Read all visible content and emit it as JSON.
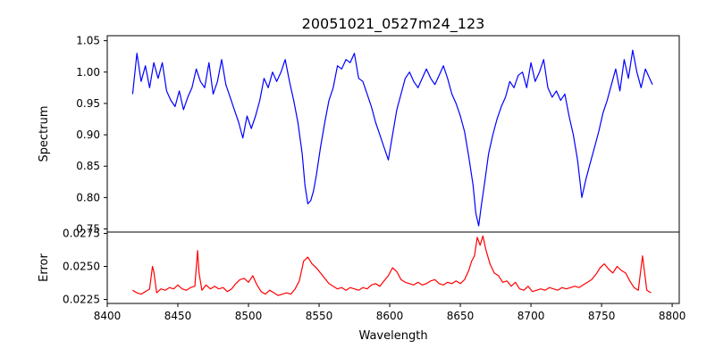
{
  "chart_data": [
    {
      "type": "line",
      "title": "20051021_0527m24_123",
      "xlabel": "",
      "ylabel": "Spectrum",
      "xlim": [
        8400,
        8805
      ],
      "ylim": [
        0.745,
        1.058
      ],
      "yticks": [
        0.75,
        0.8,
        0.85,
        0.9,
        0.95,
        1.0,
        1.05
      ],
      "ytick_labels": [
        "0.75",
        "0.80",
        "0.85",
        "0.90",
        "0.95",
        "1.00",
        "1.05"
      ],
      "grid": false,
      "series": [
        {
          "color": "#0000ff",
          "x": [
            8418,
            8421,
            8424,
            8427,
            8430,
            8433,
            8436,
            8439,
            8442,
            8445,
            8448,
            8451,
            8454,
            8457,
            8460,
            8463,
            8466,
            8469,
            8472,
            8475,
            8478,
            8481,
            8484,
            8487,
            8490,
            8493,
            8496,
            8499,
            8502,
            8505,
            8508,
            8511,
            8514,
            8517,
            8520,
            8523,
            8526,
            8529,
            8532,
            8535,
            8538,
            8540,
            8542,
            8544,
            8546,
            8548,
            8551,
            8554,
            8557,
            8560,
            8563,
            8566,
            8569,
            8572,
            8575,
            8578,
            8581,
            8584,
            8587,
            8590,
            8593,
            8596,
            8599,
            8602,
            8605,
            8608,
            8611,
            8614,
            8617,
            8620,
            8623,
            8626,
            8629,
            8632,
            8635,
            8638,
            8641,
            8644,
            8647,
            8650,
            8653,
            8656,
            8659,
            8661,
            8663,
            8665,
            8667,
            8670,
            8673,
            8676,
            8679,
            8682,
            8685,
            8688,
            8691,
            8694,
            8697,
            8700,
            8703,
            8706,
            8709,
            8712,
            8715,
            8718,
            8721,
            8724,
            8727,
            8730,
            8733,
            8736,
            8739,
            8742,
            8745,
            8748,
            8751,
            8754,
            8757,
            8760,
            8763,
            8766,
            8769,
            8772,
            8775,
            8778,
            8781,
            8784,
            8786
          ],
          "y": [
            0.965,
            1.03,
            0.985,
            1.01,
            0.975,
            1.015,
            0.99,
            1.015,
            0.97,
            0.955,
            0.945,
            0.97,
            0.94,
            0.96,
            0.975,
            1.005,
            0.985,
            0.975,
            1.015,
            0.965,
            0.985,
            1.02,
            0.98,
            0.96,
            0.94,
            0.92,
            0.895,
            0.93,
            0.91,
            0.93,
            0.955,
            0.99,
            0.975,
            1.0,
            0.985,
            1.0,
            1.02,
            0.985,
            0.955,
            0.92,
            0.87,
            0.82,
            0.79,
            0.795,
            0.81,
            0.835,
            0.88,
            0.92,
            0.955,
            0.975,
            1.01,
            1.005,
            1.02,
            1.015,
            1.03,
            0.99,
            0.985,
            0.965,
            0.945,
            0.92,
            0.9,
            0.88,
            0.86,
            0.9,
            0.94,
            0.965,
            0.99,
            1.0,
            0.985,
            0.975,
            0.99,
            1.005,
            0.99,
            0.98,
            0.995,
            1.01,
            0.99,
            0.965,
            0.95,
            0.93,
            0.905,
            0.865,
            0.82,
            0.775,
            0.755,
            0.79,
            0.82,
            0.87,
            0.9,
            0.925,
            0.945,
            0.96,
            0.985,
            0.975,
            0.995,
            1.0,
            0.975,
            1.015,
            0.985,
            1.0,
            1.02,
            0.975,
            0.96,
            0.97,
            0.955,
            0.965,
            0.93,
            0.9,
            0.86,
            0.8,
            0.83,
            0.855,
            0.88,
            0.905,
            0.935,
            0.955,
            0.98,
            1.005,
            0.97,
            1.02,
            0.99,
            1.035,
            1.0,
            0.975,
            1.005,
            0.99,
            0.98
          ]
        }
      ]
    },
    {
      "type": "line",
      "title": "",
      "xlabel": "Wavelength",
      "ylabel": "Error",
      "xlim": [
        8400,
        8805
      ],
      "ylim": [
        0.0222,
        0.0276
      ],
      "yticks": [
        0.0225,
        0.025,
        0.0275
      ],
      "ytick_labels": [
        "0.0225",
        "0.0250",
        "0.0275"
      ],
      "xticks": [
        8400,
        8450,
        8500,
        8550,
        8600,
        8650,
        8700,
        8750,
        8800
      ],
      "xtick_labels": [
        "8400",
        "8450",
        "8500",
        "8550",
        "8600",
        "8650",
        "8700",
        "8750",
        "8800"
      ],
      "grid": false,
      "series": [
        {
          "color": "#ff0000",
          "x": [
            8418,
            8421,
            8424,
            8427,
            8430,
            8432,
            8433,
            8435,
            8438,
            8441,
            8444,
            8447,
            8450,
            8453,
            8456,
            8459,
            8462,
            8464,
            8465,
            8467,
            8470,
            8473,
            8476,
            8479,
            8482,
            8485,
            8488,
            8491,
            8494,
            8497,
            8500,
            8503,
            8506,
            8509,
            8512,
            8515,
            8518,
            8521,
            8524,
            8527,
            8530,
            8533,
            8536,
            8539,
            8542,
            8545,
            8548,
            8551,
            8554,
            8557,
            8560,
            8563,
            8566,
            8569,
            8572,
            8575,
            8578,
            8581,
            8584,
            8587,
            8590,
            8593,
            8596,
            8599,
            8602,
            8605,
            8608,
            8611,
            8614,
            8617,
            8620,
            8623,
            8626,
            8629,
            8632,
            8635,
            8638,
            8641,
            8644,
            8647,
            8650,
            8653,
            8656,
            8658,
            8660,
            8662,
            8664,
            8666,
            8668,
            8671,
            8674,
            8677,
            8680,
            8683,
            8686,
            8689,
            8692,
            8695,
            8698,
            8701,
            8704,
            8707,
            8710,
            8713,
            8716,
            8719,
            8722,
            8725,
            8728,
            8731,
            8734,
            8737,
            8740,
            8743,
            8746,
            8749,
            8752,
            8755,
            8758,
            8761,
            8764,
            8767,
            8770,
            8773,
            8776,
            8779,
            8782,
            8785
          ],
          "y": [
            0.0232,
            0.023,
            0.0229,
            0.0231,
            0.0233,
            0.025,
            0.0246,
            0.023,
            0.0233,
            0.0232,
            0.0234,
            0.0233,
            0.0236,
            0.0233,
            0.0232,
            0.0234,
            0.0235,
            0.0262,
            0.0245,
            0.0232,
            0.0236,
            0.0233,
            0.0235,
            0.0233,
            0.0234,
            0.0231,
            0.0233,
            0.0237,
            0.024,
            0.0241,
            0.0238,
            0.0243,
            0.0236,
            0.0231,
            0.0229,
            0.0232,
            0.023,
            0.0228,
            0.0229,
            0.023,
            0.0229,
            0.0233,
            0.0239,
            0.0254,
            0.0257,
            0.0252,
            0.0249,
            0.0245,
            0.0241,
            0.0237,
            0.0235,
            0.0233,
            0.0234,
            0.0232,
            0.0234,
            0.0233,
            0.0232,
            0.0234,
            0.0233,
            0.0236,
            0.0237,
            0.0235,
            0.0239,
            0.0243,
            0.0249,
            0.0246,
            0.024,
            0.0238,
            0.0237,
            0.0236,
            0.0238,
            0.0236,
            0.0237,
            0.0239,
            0.024,
            0.0237,
            0.0236,
            0.0238,
            0.0237,
            0.0239,
            0.0237,
            0.024,
            0.0247,
            0.0254,
            0.0258,
            0.0272,
            0.0266,
            0.0273,
            0.0263,
            0.0252,
            0.0245,
            0.0243,
            0.0238,
            0.0239,
            0.0235,
            0.0238,
            0.0233,
            0.0232,
            0.0235,
            0.0231,
            0.0232,
            0.0233,
            0.0232,
            0.0234,
            0.0233,
            0.0232,
            0.0234,
            0.0233,
            0.0234,
            0.0235,
            0.0234,
            0.0236,
            0.0238,
            0.024,
            0.0244,
            0.0249,
            0.0252,
            0.0248,
            0.0245,
            0.025,
            0.0247,
            0.0245,
            0.0239,
            0.0234,
            0.0232,
            0.0258,
            0.0232,
            0.023
          ]
        }
      ]
    }
  ]
}
